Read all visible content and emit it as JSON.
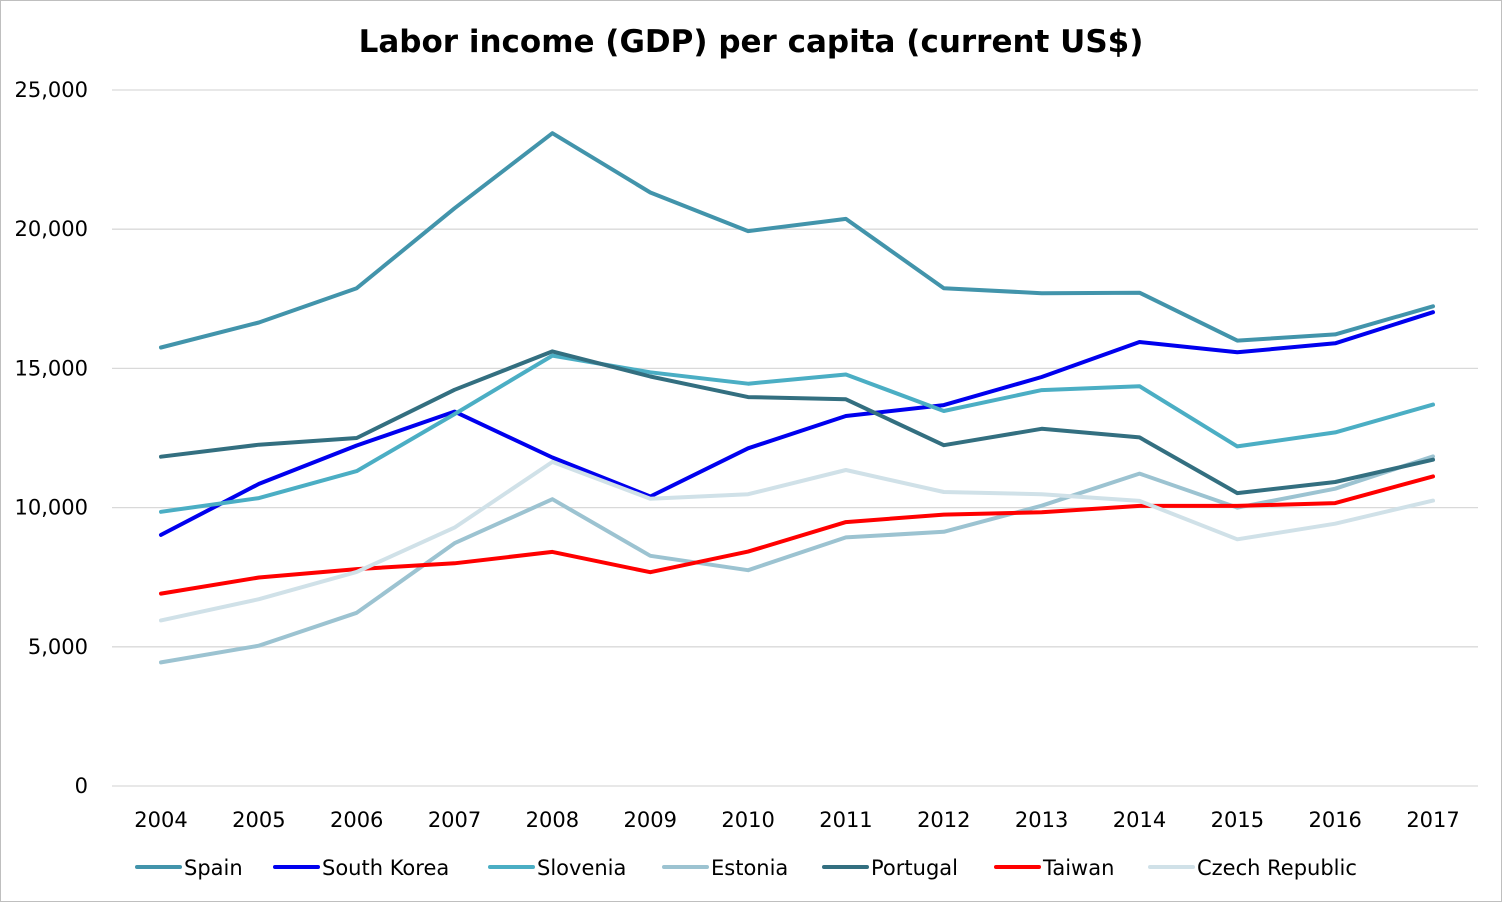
{
  "chart_data": {
    "type": "line",
    "title": "Labor income (GDP) per capita (current US$)",
    "xlabel": "",
    "ylabel": "",
    "ylim": [
      0,
      25000
    ],
    "yticks": [
      0,
      5000,
      10000,
      15000,
      20000,
      25000
    ],
    "ytick_labels": [
      "0",
      "5,000",
      "10,000",
      "15,000",
      "20,000",
      "25,000"
    ],
    "grid": true,
    "legend_position": "bottom",
    "categories": [
      "2004",
      "2005",
      "2006",
      "2007",
      "2008",
      "2009",
      "2010",
      "2011",
      "2012",
      "2013",
      "2014",
      "2015",
      "2016",
      "2017"
    ],
    "series": [
      {
        "name": "Spain",
        "color": "#4294ab",
        "values": [
          15750,
          16650,
          17880,
          20750,
          23450,
          21320,
          19930,
          20370,
          17880,
          17700,
          17720,
          16000,
          16220,
          17230
        ]
      },
      {
        "name": "South Korea",
        "color": "#0000ee",
        "values": [
          9020,
          10850,
          12230,
          13450,
          11800,
          10400,
          12130,
          13290,
          13680,
          14690,
          15950,
          15580,
          15900,
          17020
        ]
      },
      {
        "name": "Slovenia",
        "color": "#4baec4",
        "values": [
          9850,
          10340,
          11310,
          13360,
          15460,
          14860,
          14450,
          14780,
          13470,
          14220,
          14360,
          12200,
          12700,
          13700
        ]
      },
      {
        "name": "Estonia",
        "color": "#9cc3d1",
        "values": [
          4440,
          5040,
          6220,
          8720,
          10300,
          8270,
          7750,
          8930,
          9130,
          10070,
          11220,
          10000,
          10680,
          11840
        ]
      },
      {
        "name": "Portugal",
        "color": "#336f80",
        "values": [
          11830,
          12260,
          12500,
          14230,
          15610,
          14710,
          13970,
          13890,
          12240,
          12830,
          12520,
          10520,
          10920,
          11720
        ]
      },
      {
        "name": "Taiwan",
        "color": "#ff0000",
        "values": [
          6910,
          7490,
          7790,
          8000,
          8410,
          7680,
          8420,
          9480,
          9750,
          9830,
          10060,
          10060,
          10160,
          11120
        ]
      },
      {
        "name": "Czech Republic",
        "color": "#d0e1e8",
        "values": [
          5950,
          6710,
          7690,
          9280,
          11640,
          10320,
          10480,
          11350,
          10560,
          10480,
          10240,
          8860,
          9420,
          10250
        ]
      }
    ]
  }
}
